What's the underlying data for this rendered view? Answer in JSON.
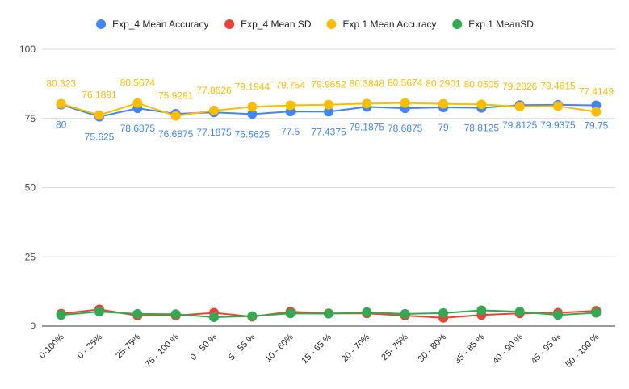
{
  "chart_data": {
    "type": "line",
    "title": "",
    "xlabel": "",
    "ylabel": "",
    "ylim": [
      0,
      100
    ],
    "yticks": [
      0,
      25,
      50,
      75,
      100
    ],
    "grid": true,
    "legend_position": "top-center",
    "categories": [
      "0-100%",
      "0 - 25%",
      "25-75%",
      "75 - 100 %",
      "0 - 50 %",
      "5 - 55 %",
      "10 - 60%",
      "15 - 65 %",
      "20 - 70%",
      "25- 75%",
      "30 - 80%",
      "35 - 85 %",
      "40 - 90 %",
      "45 - 95 %",
      "50 - 100 %"
    ],
    "series": [
      {
        "name": "Exp_4 Mean Accuracy",
        "color": "#4285f4",
        "values": [
          80,
          75.625,
          78.6875,
          76.6875,
          77.1875,
          76.5625,
          77.5,
          77.4375,
          79.1875,
          78.6875,
          79,
          78.8125,
          79.8125,
          79.9375,
          79.75
        ],
        "labels": [
          "80",
          "75.625",
          "78.6875",
          "76.6875",
          "77.1875",
          "76.5625",
          "77.5",
          "77.4375",
          "79.1875",
          "78.6875",
          "79",
          "78.8125",
          "79.8125",
          "79.9375",
          "79.75"
        ],
        "show_labels": true,
        "label_side": "below"
      },
      {
        "name": "Exp_4 Mean SD",
        "color": "#ea4335",
        "values": [
          4.5,
          6.0,
          3.8,
          3.8,
          4.8,
          3.4,
          5.2,
          4.6,
          4.6,
          3.8,
          3.0,
          4.0,
          4.6,
          4.8,
          5.5
        ],
        "show_labels": false
      },
      {
        "name": "Exp 1 Mean Accuracy",
        "color": "#fbbc04",
        "values": [
          80.323,
          76.1891,
          80.5674,
          75.9291,
          77.8626,
          79.1944,
          79.754,
          79.9652,
          80.3848,
          80.5674,
          80.2901,
          80.0505,
          79.2826,
          79.4615,
          77.4149
        ],
        "labels": [
          "80.323",
          "76.1891",
          "80.5674",
          "75.9291",
          "77.8626",
          "79.1944",
          "79.754",
          "79.9652",
          "80.3848",
          "80.5674",
          "80.2901",
          "80.0505",
          "79.2826",
          "79.4615",
          "77.4149"
        ],
        "show_labels": true,
        "label_side": "above"
      },
      {
        "name": "Exp 1 MeanSD",
        "color": "#34a853",
        "values": [
          4.0,
          5.2,
          4.4,
          4.3,
          3.2,
          3.6,
          4.6,
          4.5,
          5.0,
          4.4,
          4.7,
          5.7,
          5.2,
          4.0,
          4.8
        ],
        "show_labels": false
      }
    ]
  }
}
